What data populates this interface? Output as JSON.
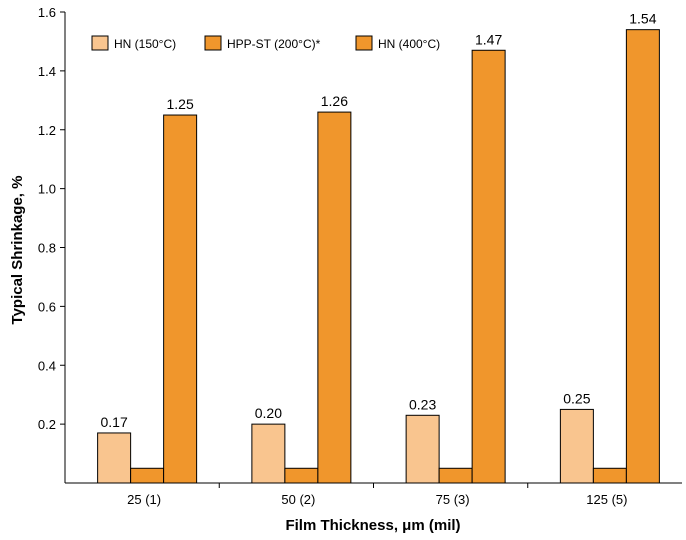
{
  "chart_data": {
    "type": "bar",
    "xlabel": "Film Thickness, μm (mil)",
    "ylabel": "Typical Shrinkage, %",
    "ylim": [
      0,
      1.6
    ],
    "yticks": [
      "0.2",
      "0.4",
      "0.6",
      "0.8",
      "1.0",
      "1.2",
      "1.4",
      "1.6"
    ],
    "ytick_values": [
      0.2,
      0.4,
      0.6,
      0.8,
      1.0,
      1.2,
      1.4,
      1.6
    ],
    "categories": [
      "25 (1)",
      "50 (2)",
      "75 (3)",
      "125 (5)"
    ],
    "series": [
      {
        "name": "HN (150°C)",
        "color": "#f9c58f",
        "values": [
          0.17,
          0.2,
          0.23,
          0.25
        ],
        "labels": [
          "0.17",
          "0.20",
          "0.23",
          "0.25"
        ]
      },
      {
        "name": "HPP-ST (200°C)*",
        "color": "#f0962c",
        "values": [
          0.05,
          0.05,
          0.05,
          0.05
        ],
        "labels": [
          "",
          "",
          "",
          ""
        ]
      },
      {
        "name": "HN (400°C)",
        "color": "#f0962c",
        "values": [
          1.25,
          1.26,
          1.47,
          1.54
        ],
        "labels": [
          "1.25",
          "1.26",
          "1.47",
          "1.54"
        ]
      }
    ],
    "legend_position": "top-left",
    "grid": false
  }
}
